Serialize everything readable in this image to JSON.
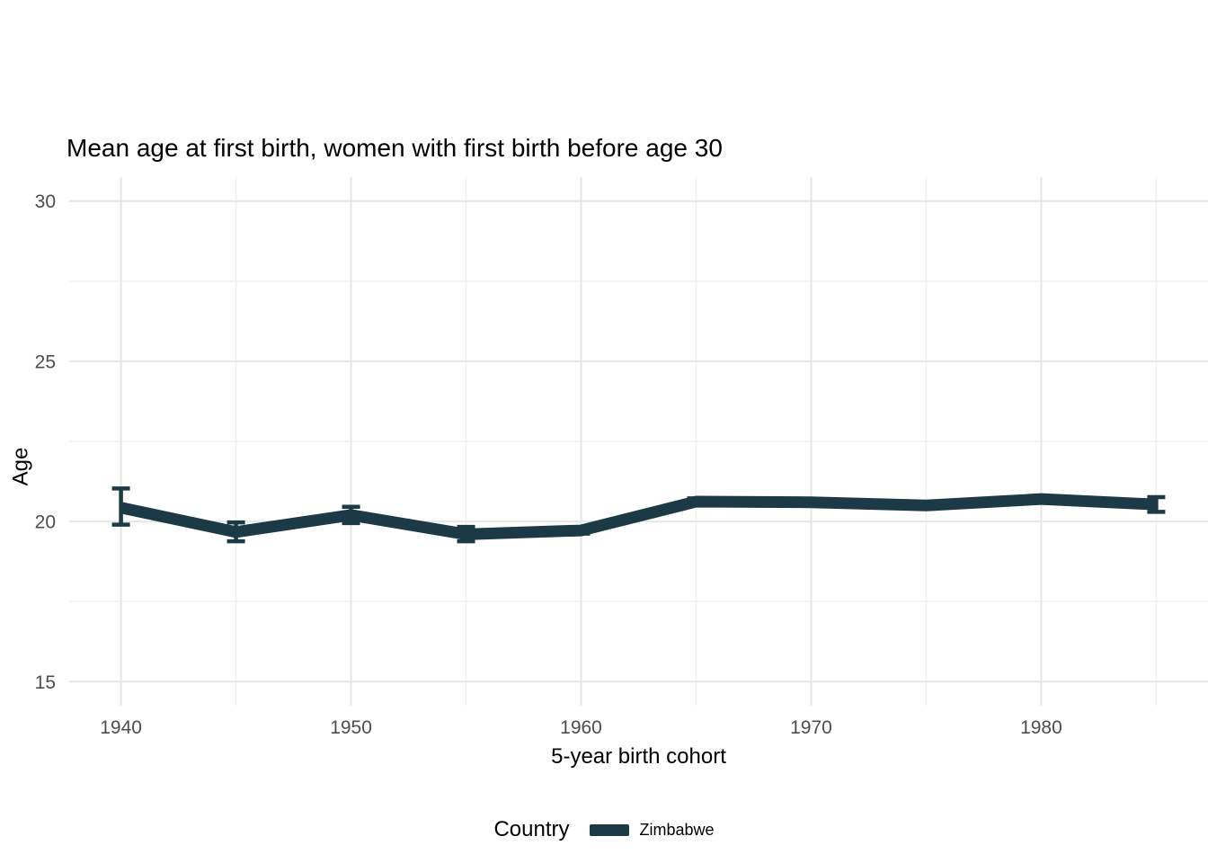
{
  "chart_data": {
    "type": "line",
    "title": "Mean age at first birth, women with first birth before age 30",
    "xlabel": "5-year birth cohort",
    "ylabel": "Age",
    "x": [
      1940,
      1945,
      1950,
      1955,
      1960,
      1965,
      1970,
      1975,
      1980,
      1985
    ],
    "series": [
      {
        "name": "Zimbabwe",
        "values": [
          20.43,
          19.67,
          20.2,
          19.6,
          19.72,
          20.62,
          20.6,
          20.5,
          20.7,
          20.53
        ],
        "ci_lower": [
          19.9,
          19.38,
          19.95,
          19.38,
          19.62,
          20.52,
          20.5,
          20.4,
          20.6,
          20.3
        ],
        "ci_upper": [
          21.03,
          19.97,
          20.46,
          19.83,
          19.82,
          20.72,
          20.7,
          20.6,
          20.8,
          20.76
        ]
      }
    ],
    "xlim": [
      1937.75,
      1987.25
    ],
    "ylim": [
      14.25,
      30.75
    ],
    "x_major_ticks": [
      1940,
      1950,
      1960,
      1970,
      1980
    ],
    "x_minor_ticks": [
      1945,
      1955,
      1965,
      1975,
      1985
    ],
    "y_major_ticks": [
      15,
      20,
      25,
      30
    ],
    "y_minor_ticks": [
      17.5,
      22.5,
      27.5
    ],
    "grid": "on",
    "legend_position": "bottom"
  },
  "legend": {
    "title": "Country",
    "items": [
      {
        "label": "Zimbabwe",
        "color": "#1c3a46"
      }
    ]
  },
  "colors": {
    "line": "#1c3a46",
    "grid_major": "#e6e6e6",
    "grid_minor": "#f0f0f0",
    "tick_text": "#4d4d4d",
    "background": "#ffffff"
  }
}
